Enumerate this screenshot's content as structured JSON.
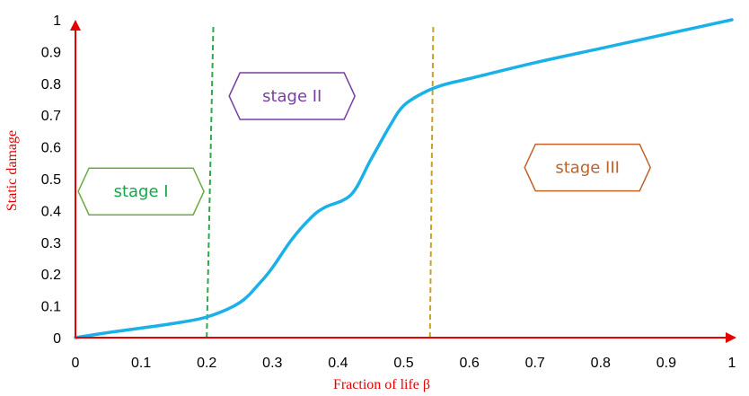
{
  "chart_data": {
    "type": "line",
    "title": "",
    "xlabel": "Fraction of life β",
    "ylabel": "Static damage",
    "xlim": [
      0,
      1
    ],
    "ylim": [
      0,
      1
    ],
    "xticks": [
      "0",
      "0.1",
      "0.2",
      "0.3",
      "0.4",
      "0.5",
      "0.6",
      "0.7",
      "0.8",
      "0.9",
      "1"
    ],
    "yticks": [
      "0",
      "0.1",
      "0.2",
      "0.3",
      "0.4",
      "0.5",
      "0.6",
      "0.7",
      "0.8",
      "0.9",
      "1"
    ],
    "grid": false,
    "series": [
      {
        "color": "#1ab0e8",
        "x": [
          0,
          0.05,
          0.1,
          0.15,
          0.2,
          0.25,
          0.28,
          0.3,
          0.33,
          0.36,
          0.38,
          0.42,
          0.45,
          0.48,
          0.5,
          0.53,
          0.56,
          0.6,
          0.7,
          0.8,
          0.9,
          1.0
        ],
        "y": [
          0,
          0.016,
          0.03,
          0.045,
          0.065,
          0.11,
          0.17,
          0.22,
          0.31,
          0.38,
          0.41,
          0.45,
          0.56,
          0.67,
          0.73,
          0.77,
          0.795,
          0.815,
          0.865,
          0.91,
          0.955,
          1.0
        ]
      }
    ],
    "vlines": [
      {
        "x_top": 0.21,
        "x_bottom": 0.2,
        "color": "#2ea84a"
      },
      {
        "x_top": 0.545,
        "x_bottom": 0.54,
        "color": "#c9a227"
      }
    ],
    "annotations": [
      {
        "text": "stage I",
        "x": 0.1,
        "y": 0.46,
        "color": "#6aab3e",
        "text_color": "#15a84a"
      },
      {
        "text": "stage II",
        "x": 0.33,
        "y": 0.76,
        "color": "#7a3fa0",
        "text_color": "#7a3fa0"
      },
      {
        "text": "stage III",
        "x": 0.78,
        "y": 0.535,
        "color": "#c0622a",
        "text_color": "#c0622a"
      }
    ]
  }
}
